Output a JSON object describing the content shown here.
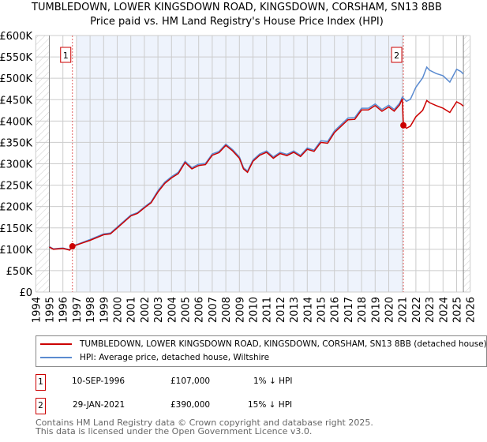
{
  "title": "TUMBLEDOWN, LOWER KINGSDOWN ROAD, KINGSDOWN, CORSHAM, SN13 8BB",
  "subtitle": "Price paid vs. HM Land Registry's House Price Index (HPI)",
  "chart_data": {
    "type": "line",
    "title": "TUMBLEDOWN, LOWER KINGSDOWN ROAD, KINGSDOWN, CORSHAM, SN13 8BB",
    "subtitle": "Price paid vs. HM Land Registry's House Price Index (HPI)",
    "xlim": [
      1994,
      2026
    ],
    "ylim": [
      0,
      600000
    ],
    "grid": true,
    "xticks": [
      "1994",
      "1995",
      "1996",
      "1997",
      "1998",
      "1999",
      "2000",
      "2001",
      "2002",
      "2003",
      "2004",
      "2005",
      "2006",
      "2007",
      "2008",
      "2009",
      "2010",
      "2011",
      "2012",
      "2013",
      "2014",
      "2015",
      "2016",
      "2017",
      "2018",
      "2019",
      "2020",
      "2021",
      "2022",
      "2023",
      "2024",
      "2025",
      "2026"
    ],
    "yticks": [
      {
        "v": 0,
        "l": "£0"
      },
      {
        "v": 50000,
        "l": "£50K"
      },
      {
        "v": 100000,
        "l": "£100K"
      },
      {
        "v": 150000,
        "l": "£150K"
      },
      {
        "v": 200000,
        "l": "£200K"
      },
      {
        "v": 250000,
        "l": "£250K"
      },
      {
        "v": 300000,
        "l": "£300K"
      },
      {
        "v": 350000,
        "l": "£350K"
      },
      {
        "v": 400000,
        "l": "£400K"
      },
      {
        "v": 450000,
        "l": "£450K"
      },
      {
        "v": 500000,
        "l": "£500K"
      },
      {
        "v": 550000,
        "l": "£550K"
      },
      {
        "v": 600000,
        "l": "£600K"
      }
    ],
    "hatched": [
      [
        1994,
        1995
      ],
      [
        2025.5,
        2026
      ]
    ],
    "shaded": [
      1997.0,
      2021.08
    ],
    "series": [
      {
        "name": "HPI: Average price, detached house, Wiltshire",
        "color": "#5b8bd0",
        "x": [
          1995,
          1995.3,
          1996,
          1996.5,
          1996.7,
          1997,
          1998,
          1999,
          1999.5,
          2000,
          2001,
          2001.5,
          2002,
          2002.5,
          2003,
          2003.5,
          2004,
          2004.5,
          2005,
          2005.5,
          2006,
          2006.5,
          2007,
          2007.5,
          2008,
          2008.5,
          2009,
          2009.3,
          2009.6,
          2010,
          2010.5,
          2011,
          2011.5,
          2012,
          2012.5,
          2013,
          2013.5,
          2014,
          2014.5,
          2015,
          2015.5,
          2016,
          2016.5,
          2017,
          2017.5,
          2018,
          2018.5,
          2019,
          2019.5,
          2020,
          2020.4,
          2020.8,
          2021,
          2021.3,
          2021.6,
          2022,
          2022.5,
          2022.8,
          2023,
          2023.5,
          2024,
          2024.5,
          2025,
          2025.3,
          2025.5
        ],
        "y": [
          106000,
          101000,
          103000,
          99000,
          108000,
          111000,
          123000,
          136000,
          138000,
          152000,
          180000,
          186000,
          199000,
          211000,
          237000,
          257000,
          270000,
          280000,
          306000,
          291000,
          299000,
          301000,
          323000,
          329000,
          346000,
          333000,
          316000,
          291000,
          283000,
          309000,
          323000,
          330000,
          316000,
          327000,
          322000,
          330000,
          320000,
          337000,
          332000,
          354000,
          352000,
          377000,
          392000,
          407000,
          408000,
          430000,
          430000,
          440000,
          427000,
          437000,
          427000,
          442000,
          456000,
          446000,
          451000,
          479000,
          501000,
          526000,
          519000,
          511000,
          506000,
          491000,
          521000,
          516000,
          510000
        ]
      },
      {
        "name": "TUMBLEDOWN, LOWER KINGSDOWN ROAD, KINGSDOWN, CORSHAM, SN13 8BB (detached house)",
        "color": "#cc0000",
        "x": [
          1995,
          1995.3,
          1996,
          1996.5,
          1996.7,
          1997,
          1998,
          1999,
          1999.5,
          2000,
          2001,
          2001.5,
          2002,
          2002.5,
          2003,
          2003.5,
          2004,
          2004.5,
          2005,
          2005.5,
          2006,
          2006.5,
          2007,
          2007.5,
          2008,
          2008.5,
          2009,
          2009.3,
          2009.6,
          2010,
          2010.5,
          2011,
          2011.5,
          2012,
          2012.5,
          2013,
          2013.5,
          2014,
          2014.5,
          2015,
          2015.5,
          2016,
          2016.5,
          2017,
          2017.5,
          2018,
          2018.5,
          2019,
          2019.5,
          2020,
          2020.4,
          2020.8,
          2021.0,
          2021.08,
          2021.3,
          2021.6,
          2022,
          2022.5,
          2022.8,
          2023,
          2023.5,
          2024,
          2024.5,
          2025,
          2025.3,
          2025.5
        ],
        "y": [
          105000,
          100000,
          102000,
          98000,
          107000,
          110000,
          121000,
          134000,
          136000,
          150000,
          178000,
          184000,
          197000,
          209000,
          234000,
          254000,
          267000,
          277000,
          303000,
          288000,
          296000,
          298000,
          320000,
          326000,
          343000,
          330000,
          313000,
          288000,
          280000,
          306000,
          320000,
          327000,
          313000,
          324000,
          319000,
          327000,
          317000,
          334000,
          329000,
          350000,
          348000,
          373000,
          388000,
          403000,
          404000,
          426000,
          426000,
          436000,
          423000,
          433000,
          423000,
          438000,
          452000,
          390000,
          383000,
          388000,
          410000,
          425000,
          448000,
          443000,
          436000,
          430000,
          420000,
          445000,
          440000,
          435000
        ]
      }
    ],
    "sales": [
      {
        "label": "1",
        "x": 1996.7,
        "y": 107000
      },
      {
        "label": "2",
        "x": 2021.08,
        "y": 390000
      }
    ]
  },
  "legend": {
    "items": [
      {
        "label": "TUMBLEDOWN, LOWER KINGSDOWN ROAD, KINGSDOWN, CORSHAM, SN13 8BB (detached house)",
        "color": "#cc0000"
      },
      {
        "label": "HPI: Average price, detached house, Wiltshire",
        "color": "#5b8bd0"
      }
    ]
  },
  "table": [
    {
      "num": "1",
      "date": "10-SEP-1996",
      "price": "£107,000",
      "hpi": "1% ↓ HPI"
    },
    {
      "num": "2",
      "date": "29-JAN-2021",
      "price": "£390,000",
      "hpi": "15% ↓ HPI"
    }
  ],
  "footer": {
    "line1": "Contains HM Land Registry data © Crown copyright and database right 2025.",
    "line2": "This data is licensed under the Open Government Licence v3.0."
  }
}
